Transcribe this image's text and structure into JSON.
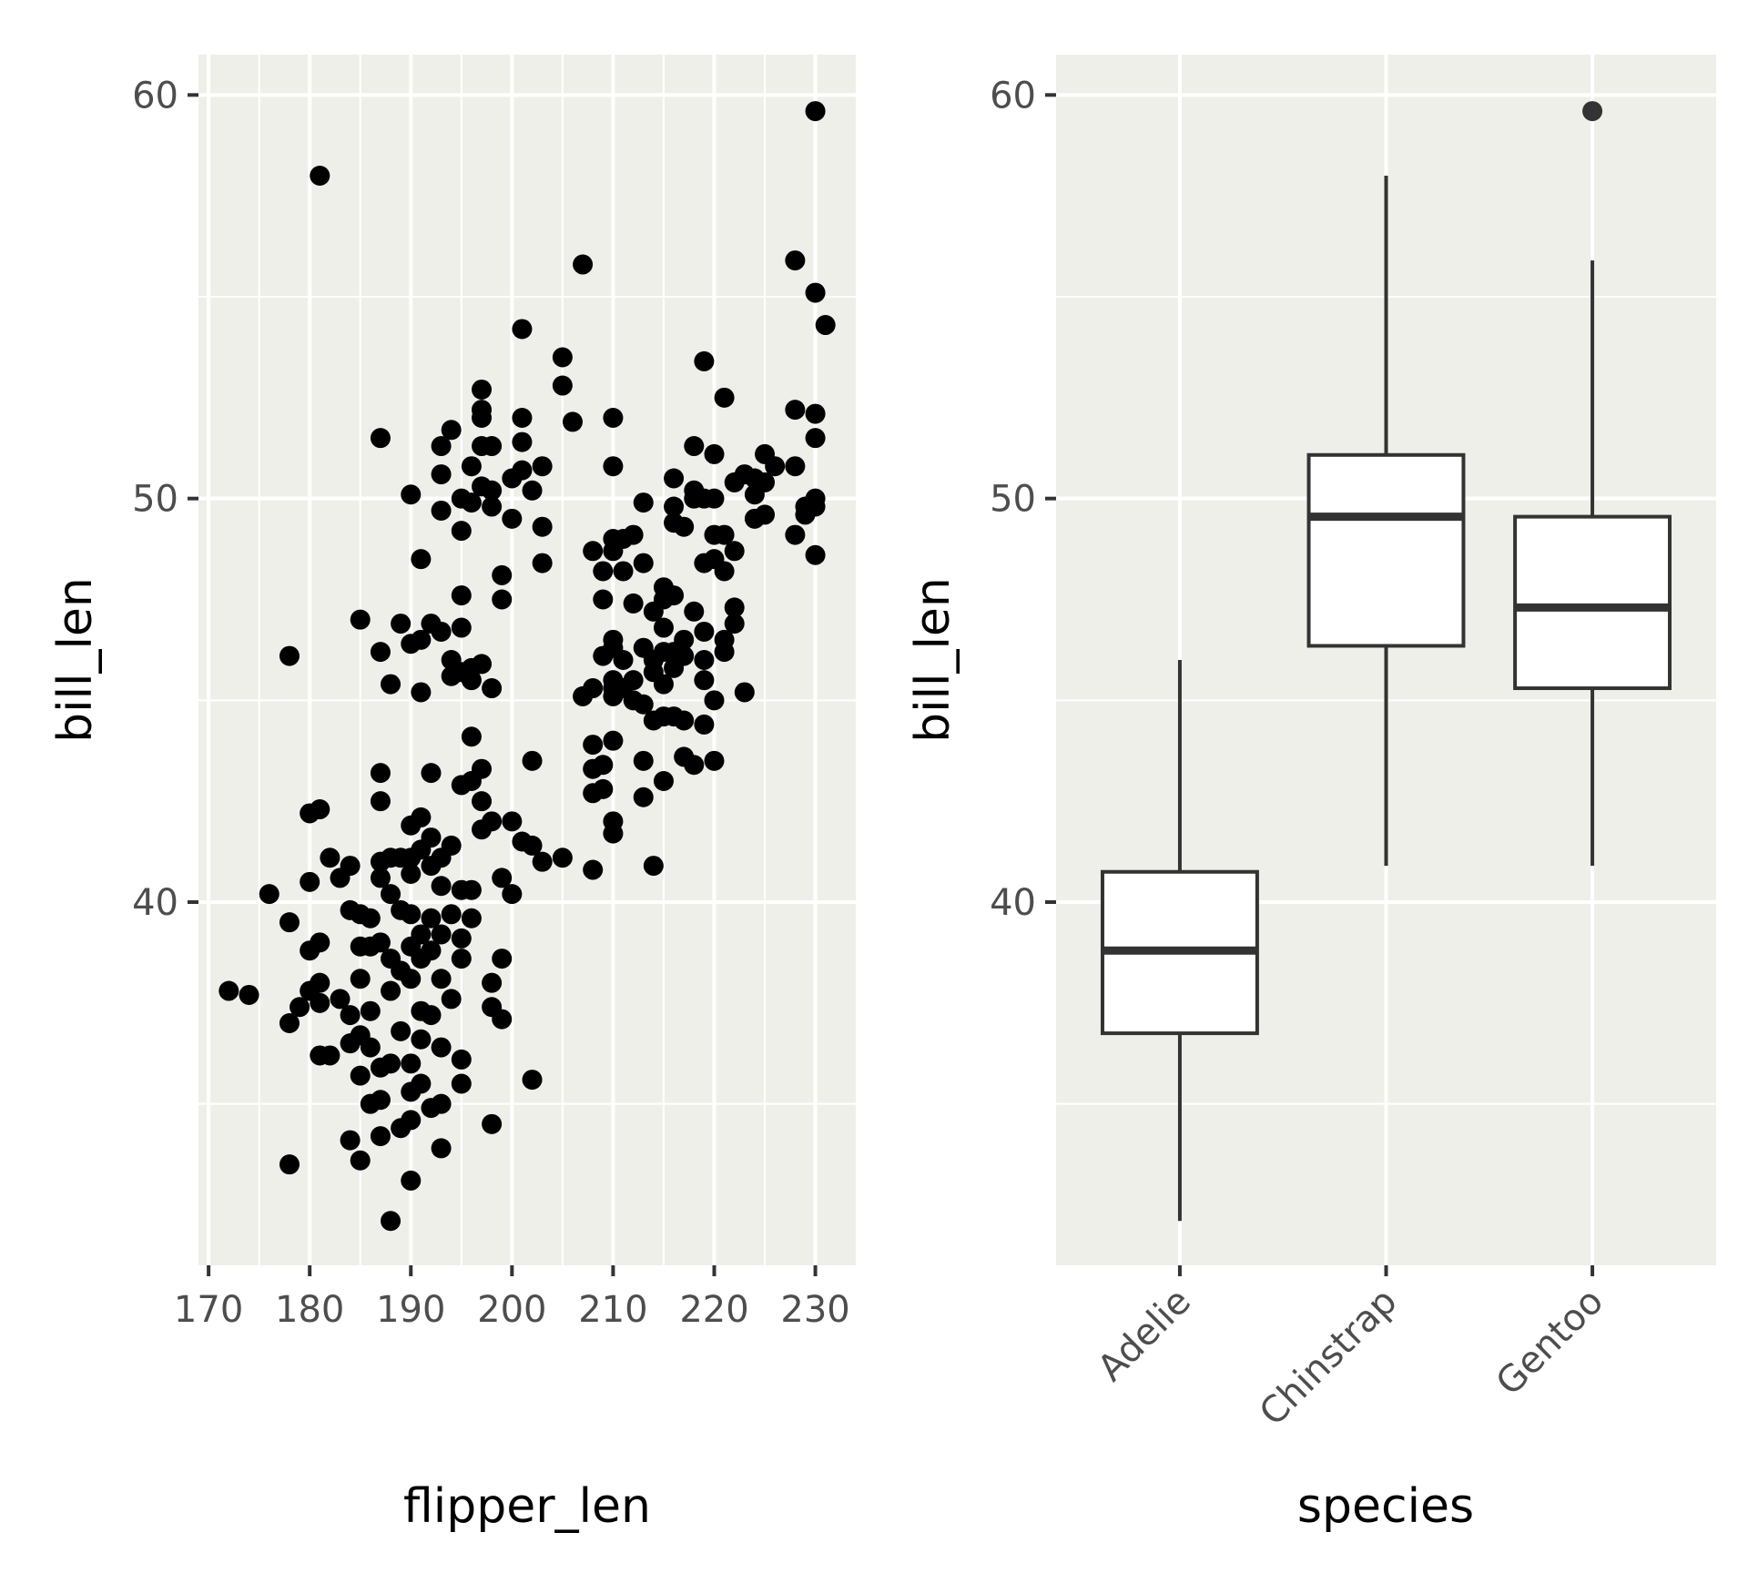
{
  "colors": {
    "panel_background": "#efefe9",
    "grid": "#ffffff",
    "point": "#000000",
    "box_outline": "#333333",
    "box_fill": "#ffffff",
    "tick_text": "#4d4d4d"
  },
  "chart_data": [
    {
      "type": "scatter",
      "xlabel": "flipper_len",
      "ylabel": "bill_len",
      "xlim": [
        169,
        234
      ],
      "ylim": [
        31,
        61
      ],
      "x_ticks": [
        170,
        180,
        190,
        200,
        210,
        220,
        230
      ],
      "y_ticks": [
        40,
        50,
        60
      ],
      "x_tick_labels": [
        "170",
        "180",
        "190",
        "200",
        "210",
        "220",
        "230"
      ],
      "y_tick_labels": [
        "40",
        "50",
        "60"
      ],
      "grid": true,
      "points": [
        [
          172,
          37.8
        ],
        [
          174,
          37.7
        ],
        [
          176,
          40.2
        ],
        [
          178,
          39.5
        ],
        [
          178,
          37.0
        ],
        [
          178,
          46.1
        ],
        [
          178,
          33.5
        ],
        [
          179,
          37.4
        ],
        [
          180,
          38.8
        ],
        [
          180,
          40.5
        ],
        [
          180,
          42.2
        ],
        [
          180,
          37.8
        ],
        [
          181,
          42.3
        ],
        [
          181,
          39.0
        ],
        [
          181,
          38.0
        ],
        [
          181,
          37.5
        ],
        [
          181,
          36.2
        ],
        [
          181,
          58.0
        ],
        [
          182,
          36.2
        ],
        [
          182,
          41.1
        ],
        [
          183,
          40.6
        ],
        [
          183,
          37.6
        ],
        [
          184,
          40.9
        ],
        [
          184,
          39.8
        ],
        [
          184,
          37.2
        ],
        [
          184,
          36.5
        ],
        [
          184,
          34.1
        ],
        [
          185,
          39.7
        ],
        [
          185,
          38.1
        ],
        [
          185,
          36.7
        ],
        [
          185,
          35.7
        ],
        [
          185,
          33.6
        ],
        [
          185,
          38.9
        ],
        [
          185,
          47.0
        ],
        [
          186,
          39.6
        ],
        [
          186,
          38.9
        ],
        [
          186,
          37.3
        ],
        [
          186,
          35.0
        ],
        [
          186,
          36.4
        ],
        [
          187,
          41.0
        ],
        [
          187,
          40.6
        ],
        [
          187,
          39.0
        ],
        [
          187,
          35.9
        ],
        [
          187,
          35.1
        ],
        [
          187,
          34.2
        ],
        [
          187,
          43.2
        ],
        [
          187,
          42.5
        ],
        [
          187,
          51.5
        ],
        [
          187,
          46.2
        ],
        [
          188,
          41.1
        ],
        [
          188,
          40.2
        ],
        [
          188,
          38.6
        ],
        [
          188,
          37.8
        ],
        [
          188,
          36.0
        ],
        [
          188,
          32.1
        ],
        [
          188,
          45.4
        ],
        [
          189,
          41.1
        ],
        [
          189,
          39.8
        ],
        [
          189,
          38.3
        ],
        [
          189,
          36.8
        ],
        [
          189,
          34.4
        ],
        [
          189,
          46.9
        ],
        [
          190,
          41.1
        ],
        [
          190,
          40.7
        ],
        [
          190,
          39.7
        ],
        [
          190,
          38.9
        ],
        [
          190,
          38.1
        ],
        [
          190,
          36.0
        ],
        [
          190,
          35.3
        ],
        [
          190,
          34.6
        ],
        [
          190,
          33.1
        ],
        [
          190,
          41.9
        ],
        [
          190,
          46.4
        ],
        [
          190,
          50.1
        ],
        [
          191,
          42.1
        ],
        [
          191,
          41.3
        ],
        [
          191,
          39.2
        ],
        [
          191,
          38.6
        ],
        [
          191,
          37.3
        ],
        [
          191,
          36.6
        ],
        [
          191,
          35.5
        ],
        [
          191,
          45.2
        ],
        [
          191,
          46.5
        ],
        [
          191,
          48.5
        ],
        [
          192,
          41.6
        ],
        [
          192,
          40.9
        ],
        [
          192,
          39.6
        ],
        [
          192,
          38.8
        ],
        [
          192,
          37.2
        ],
        [
          192,
          34.9
        ],
        [
          192,
          43.2
        ],
        [
          192,
          46.9
        ],
        [
          193,
          41.1
        ],
        [
          193,
          40.4
        ],
        [
          193,
          39.2
        ],
        [
          193,
          38.1
        ],
        [
          193,
          36.4
        ],
        [
          193,
          35.0
        ],
        [
          193,
          33.9
        ],
        [
          193,
          46.7
        ],
        [
          193,
          49.7
        ],
        [
          193,
          50.6
        ],
        [
          193,
          51.3
        ],
        [
          194,
          41.4
        ],
        [
          194,
          39.7
        ],
        [
          194,
          37.6
        ],
        [
          194,
          46.0
        ],
        [
          194,
          45.6
        ],
        [
          194,
          51.7
        ],
        [
          195,
          42.9
        ],
        [
          195,
          40.3
        ],
        [
          195,
          39.1
        ],
        [
          195,
          38.6
        ],
        [
          195,
          36.1
        ],
        [
          195,
          35.5
        ],
        [
          195,
          46.8
        ],
        [
          195,
          45.7
        ],
        [
          195,
          49.2
        ],
        [
          195,
          50.0
        ],
        [
          195,
          47.6
        ],
        [
          196,
          43.0
        ],
        [
          196,
          40.3
        ],
        [
          196,
          39.6
        ],
        [
          196,
          45.8
        ],
        [
          196,
          45.5
        ],
        [
          196,
          50.8
        ],
        [
          196,
          44.1
        ],
        [
          196,
          49.9
        ],
        [
          197,
          43.3
        ],
        [
          197,
          42.5
        ],
        [
          197,
          41.8
        ],
        [
          197,
          45.9
        ],
        [
          197,
          50.3
        ],
        [
          197,
          51.3
        ],
        [
          197,
          52.0
        ],
        [
          197,
          52.7
        ],
        [
          197,
          52.2
        ],
        [
          198,
          42.0
        ],
        [
          198,
          38.0
        ],
        [
          198,
          37.4
        ],
        [
          198,
          34.5
        ],
        [
          198,
          45.3
        ],
        [
          198,
          50.2
        ],
        [
          198,
          51.3
        ],
        [
          198,
          49.8
        ],
        [
          199,
          40.6
        ],
        [
          199,
          38.6
        ],
        [
          199,
          37.1
        ],
        [
          199,
          48.1
        ],
        [
          199,
          47.5
        ],
        [
          200,
          42.0
        ],
        [
          200,
          40.2
        ],
        [
          200,
          49.5
        ],
        [
          200,
          50.5
        ],
        [
          201,
          41.5
        ],
        [
          201,
          51.4
        ],
        [
          201,
          52.0
        ],
        [
          201,
          54.2
        ],
        [
          201,
          50.7
        ],
        [
          202,
          41.4
        ],
        [
          202,
          43.5
        ],
        [
          202,
          35.6
        ],
        [
          202,
          50.2
        ],
        [
          203,
          41.0
        ],
        [
          203,
          49.3
        ],
        [
          203,
          50.8
        ],
        [
          203,
          48.4
        ],
        [
          205,
          41.1
        ],
        [
          205,
          53.5
        ],
        [
          205,
          52.8
        ],
        [
          206,
          51.9
        ],
        [
          207,
          45.1
        ],
        [
          207,
          55.8
        ],
        [
          208,
          40.8
        ],
        [
          208,
          43.3
        ],
        [
          208,
          42.7
        ],
        [
          208,
          43.9
        ],
        [
          208,
          45.3
        ],
        [
          208,
          48.7
        ],
        [
          209,
          46.1
        ],
        [
          209,
          47.5
        ],
        [
          209,
          48.2
        ],
        [
          209,
          43.4
        ],
        [
          209,
          42.8
        ],
        [
          210,
          42.0
        ],
        [
          210,
          41.7
        ],
        [
          210,
          44.0
        ],
        [
          210,
          45.1
        ],
        [
          210,
          45.5
        ],
        [
          210,
          46.3
        ],
        [
          210,
          46.5
        ],
        [
          210,
          48.7
        ],
        [
          210,
          49.0
        ],
        [
          210,
          50.8
        ],
        [
          210,
          52.0
        ],
        [
          210,
          45.3
        ],
        [
          211,
          45.3
        ],
        [
          211,
          46.0
        ],
        [
          211,
          48.2
        ],
        [
          211,
          49.0
        ],
        [
          212,
          45.5
        ],
        [
          212,
          47.4
        ],
        [
          212,
          49.1
        ],
        [
          212,
          45.0
        ],
        [
          213,
          43.5
        ],
        [
          213,
          42.6
        ],
        [
          213,
          44.9
        ],
        [
          213,
          46.3
        ],
        [
          213,
          48.4
        ],
        [
          213,
          49.9
        ],
        [
          214,
          40.9
        ],
        [
          214,
          44.5
        ],
        [
          214,
          45.7
        ],
        [
          214,
          47.2
        ],
        [
          214,
          46.0
        ],
        [
          215,
          47.8
        ],
        [
          215,
          47.5
        ],
        [
          215,
          46.8
        ],
        [
          215,
          45.4
        ],
        [
          215,
          43.0
        ],
        [
          215,
          46.2
        ],
        [
          215,
          44.6
        ],
        [
          216,
          47.6
        ],
        [
          216,
          46.2
        ],
        [
          216,
          49.4
        ],
        [
          216,
          49.8
        ],
        [
          216,
          50.5
        ],
        [
          216,
          45.8
        ],
        [
          216,
          44.6
        ],
        [
          217,
          46.5
        ],
        [
          217,
          44.5
        ],
        [
          217,
          43.6
        ],
        [
          217,
          49.3
        ],
        [
          217,
          46.1
        ],
        [
          218,
          47.2
        ],
        [
          218,
          50.2
        ],
        [
          218,
          50.0
        ],
        [
          218,
          51.3
        ],
        [
          218,
          43.4
        ],
        [
          219,
          46.7
        ],
        [
          219,
          48.4
        ],
        [
          219,
          46.0
        ],
        [
          219,
          45.5
        ],
        [
          219,
          44.4
        ],
        [
          219,
          50.0
        ],
        [
          219,
          53.4
        ],
        [
          220,
          50.0
        ],
        [
          220,
          51.1
        ],
        [
          220,
          48.5
        ],
        [
          220,
          45.0
        ],
        [
          220,
          43.5
        ],
        [
          220,
          49.1
        ],
        [
          221,
          49.1
        ],
        [
          221,
          48.2
        ],
        [
          221,
          46.5
        ],
        [
          221,
          46.2
        ],
        [
          221,
          52.5
        ],
        [
          222,
          48.7
        ],
        [
          222,
          47.3
        ],
        [
          222,
          46.9
        ],
        [
          222,
          50.4
        ],
        [
          223,
          45.2
        ],
        [
          223,
          50.6
        ],
        [
          224,
          50.1
        ],
        [
          224,
          49.5
        ],
        [
          224,
          50.5
        ],
        [
          225,
          50.4
        ],
        [
          225,
          51.1
        ],
        [
          225,
          49.6
        ],
        [
          226,
          50.8
        ],
        [
          228,
          49.1
        ],
        [
          228,
          50.8
        ],
        [
          228,
          52.2
        ],
        [
          228,
          55.9
        ],
        [
          229,
          49.8
        ],
        [
          229,
          49.6
        ],
        [
          230,
          50.0
        ],
        [
          230,
          48.6
        ],
        [
          230,
          51.5
        ],
        [
          230,
          52.1
        ],
        [
          230,
          55.1
        ],
        [
          230,
          59.6
        ],
        [
          230,
          49.8
        ],
        [
          231,
          54.3
        ]
      ]
    },
    {
      "type": "box",
      "xlabel": "species",
      "ylabel": "bill_len",
      "ylim": [
        31,
        61
      ],
      "y_ticks": [
        40,
        50,
        60
      ],
      "y_tick_labels": [
        "40",
        "50",
        "60"
      ],
      "categories": [
        "Adelie",
        "Chinstrap",
        "Gentoo"
      ],
      "grid": true,
      "boxes": [
        {
          "category": "Adelie",
          "min": 32.1,
          "q1": 36.75,
          "median": 38.8,
          "q3": 40.75,
          "max": 46.0,
          "outliers": []
        },
        {
          "category": "Chinstrap",
          "min": 40.9,
          "q1": 46.35,
          "median": 49.55,
          "q3": 51.08,
          "max": 58.0,
          "outliers": []
        },
        {
          "category": "Gentoo",
          "min": 40.9,
          "q1": 45.3,
          "median": 47.3,
          "q3": 49.55,
          "max": 55.9,
          "outliers": [
            59.6
          ]
        }
      ]
    }
  ]
}
